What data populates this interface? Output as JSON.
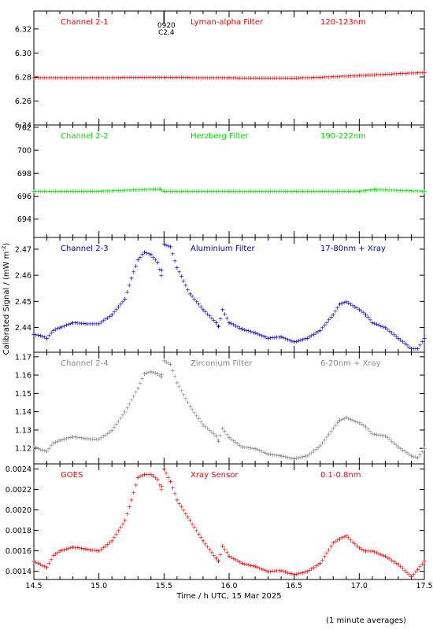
{
  "figure": {
    "ylabel": "Calibrated Signal / (mW m",
    "ylabel_sup": "-2",
    "ylabel_close": ")",
    "xlabel": "Time / h UTC, 15 Mar 2025",
    "footnote": "(1 minute averages)",
    "marker": "+",
    "event_label_top": "0920",
    "event_label_bottom": "C2.4"
  },
  "chart_data": [
    {
      "type": "scatter",
      "channel": "Channel 2-1",
      "filter": "Lyman-alpha Filter",
      "band": "120-123nm",
      "color": "#ff0000",
      "xlim": [
        14.5,
        17.5
      ],
      "ylim": [
        6.24,
        6.335
      ],
      "yticks": [
        6.24,
        6.26,
        6.28,
        6.3,
        6.32
      ],
      "ytick_labels": [
        "6.24",
        "6.26",
        "6.28",
        "6.30",
        "6.32"
      ],
      "x": [
        14.5,
        15.0,
        15.5,
        16.0,
        16.5,
        16.7,
        17.0,
        17.5
      ],
      "y": [
        6.2795,
        6.2797,
        6.28,
        6.2795,
        6.2793,
        6.28,
        6.2815,
        6.284
      ]
    },
    {
      "type": "scatter",
      "channel": "Channel 2-2",
      "filter": "Herzberg Filter",
      "band": "190-222nm",
      "color": "#00dd00",
      "xlim": [
        14.5,
        17.5
      ],
      "ylim": [
        692.4,
        702.2
      ],
      "yticks": [
        694,
        696,
        698,
        700,
        702
      ],
      "ytick_labels": [
        "694",
        "696",
        "698",
        "700",
        "702"
      ],
      "x": [
        14.5,
        15.0,
        15.47,
        15.5,
        16.0,
        16.5,
        17.0,
        17.12,
        17.5
      ],
      "y": [
        696.45,
        696.45,
        696.65,
        696.45,
        696.45,
        696.45,
        696.45,
        696.6,
        696.45
      ]
    },
    {
      "type": "scatter",
      "channel": "Channel 2-3",
      "filter": "Aluminium Filter",
      "band": "17-80nm + Xray",
      "color": "#0000cc",
      "xlim": [
        14.5,
        17.5
      ],
      "ylim": [
        2.4305,
        2.4745
      ],
      "yticks": [
        2.44,
        2.45,
        2.46,
        2.47
      ],
      "ytick_labels": [
        "2.44",
        "2.45",
        "2.46",
        "2.47"
      ],
      "x": [
        14.5,
        14.55,
        14.6,
        14.65,
        14.7,
        14.8,
        14.9,
        15.0,
        15.1,
        15.2,
        15.25,
        15.3,
        15.35,
        15.4,
        15.45,
        15.48,
        15.5,
        15.55,
        15.6,
        15.7,
        15.8,
        15.9,
        15.92,
        15.95,
        16.0,
        16.1,
        16.2,
        16.3,
        16.4,
        16.5,
        16.6,
        16.7,
        16.8,
        16.85,
        16.9,
        17.0,
        17.05,
        17.1,
        17.2,
        17.3,
        17.4,
        17.45,
        17.5
      ],
      "y": [
        2.4375,
        2.437,
        2.436,
        2.439,
        2.44,
        2.442,
        2.4415,
        2.4415,
        2.445,
        2.451,
        2.459,
        2.466,
        2.469,
        2.468,
        2.465,
        2.46,
        2.472,
        2.471,
        2.463,
        2.453,
        2.447,
        2.442,
        2.4405,
        2.447,
        2.442,
        2.4395,
        2.438,
        2.436,
        2.4365,
        2.4345,
        2.436,
        2.439,
        2.445,
        2.449,
        2.45,
        2.447,
        2.445,
        2.442,
        2.44,
        2.436,
        2.432,
        2.432,
        2.436
      ]
    },
    {
      "type": "scatter",
      "channel": "Channel 2-4",
      "filter": "Zirconium Filter",
      "band": "6-20nm + Xray",
      "color": "#888888",
      "xlim": [
        14.5,
        17.5
      ],
      "ylim": [
        1.1115,
        1.1725
      ],
      "yticks": [
        1.12,
        1.13,
        1.14,
        1.15,
        1.16,
        1.17
      ],
      "ytick_labels": [
        "1.12",
        "1.13",
        "1.14",
        "1.15",
        "1.16",
        "1.17"
      ],
      "x": [
        14.5,
        14.55,
        14.6,
        14.65,
        14.7,
        14.8,
        14.9,
        15.0,
        15.1,
        15.2,
        15.3,
        15.35,
        15.4,
        15.45,
        15.48,
        15.5,
        15.55,
        15.6,
        15.7,
        15.8,
        15.9,
        15.92,
        15.95,
        16.0,
        16.1,
        16.2,
        16.3,
        16.4,
        16.5,
        16.6,
        16.7,
        16.8,
        16.85,
        16.9,
        17.0,
        17.05,
        17.1,
        17.2,
        17.3,
        17.4,
        17.45,
        17.5
      ],
      "y": [
        1.121,
        1.1195,
        1.1185,
        1.123,
        1.1245,
        1.1265,
        1.1255,
        1.125,
        1.13,
        1.14,
        1.153,
        1.161,
        1.162,
        1.161,
        1.159,
        1.168,
        1.166,
        1.156,
        1.143,
        1.133,
        1.127,
        1.124,
        1.131,
        1.126,
        1.121,
        1.12,
        1.117,
        1.116,
        1.1145,
        1.116,
        1.1215,
        1.131,
        1.1355,
        1.137,
        1.134,
        1.132,
        1.128,
        1.127,
        1.121,
        1.116,
        1.115,
        1.12
      ]
    },
    {
      "type": "scatter",
      "channel": "GOES",
      "filter": "Xray Sensor",
      "band": "0.1-0.8nm",
      "color": "#ff0000",
      "xlim": [
        14.5,
        17.5
      ],
      "ylim": [
        0.00132,
        0.00245
      ],
      "yticks": [
        0.0014,
        0.0016,
        0.0018,
        0.002,
        0.0022,
        0.0024
      ],
      "ytick_labels": [
        "0.0014",
        "0.0016",
        "0.0018",
        "0.0020",
        "0.0022",
        "0.0024"
      ],
      "x": [
        14.5,
        14.55,
        14.6,
        14.65,
        14.7,
        14.8,
        14.9,
        15.0,
        15.1,
        15.2,
        15.25,
        15.3,
        15.35,
        15.4,
        15.45,
        15.48,
        15.5,
        15.55,
        15.6,
        15.7,
        15.8,
        15.9,
        15.92,
        15.95,
        16.0,
        16.1,
        16.2,
        16.3,
        16.4,
        16.5,
        16.6,
        16.7,
        16.8,
        16.85,
        16.9,
        17.0,
        17.05,
        17.1,
        17.2,
        17.3,
        17.4,
        17.45,
        17.5
      ],
      "y": [
        0.0015,
        0.00147,
        0.00144,
        0.00156,
        0.0016,
        0.00164,
        0.00162,
        0.0016,
        0.0017,
        0.0019,
        0.0021,
        0.00232,
        0.00235,
        0.00235,
        0.0023,
        0.0022,
        0.0024,
        0.00228,
        0.0021,
        0.0019,
        0.0017,
        0.00153,
        0.0015,
        0.00165,
        0.00155,
        0.00148,
        0.00145,
        0.0014,
        0.00141,
        0.00137,
        0.0014,
        0.00148,
        0.00168,
        0.00172,
        0.00175,
        0.00163,
        0.0016,
        0.0016,
        0.00155,
        0.00147,
        0.00135,
        0.00142,
        0.0015
      ]
    }
  ],
  "x_axis": {
    "ticks": [
      14.5,
      15.0,
      15.5,
      16.0,
      16.5,
      17.0,
      17.5
    ],
    "tick_labels": [
      "14.5",
      "15.0",
      "15.5",
      "16.0",
      "16.5",
      "17.0",
      "17.5"
    ],
    "minor_step": 0.1,
    "event_time": 15.5
  }
}
